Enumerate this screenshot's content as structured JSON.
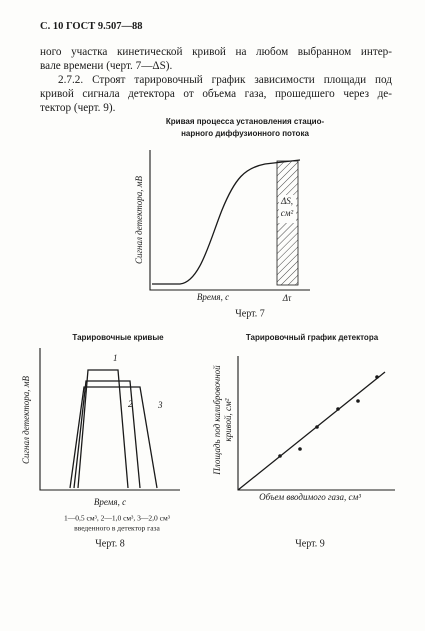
{
  "header": "С. 10 ГОСТ 9.507—88",
  "paragraphs": [
    [
      "ного участка кинетической кривой на любом выбранном интер-",
      "вале времени (черт. 7—ΔS)."
    ],
    [
      "2.7.2. Строят тарировочный график зависимости площади под",
      "кривой сигнала детектора от объема газа, прошедшего через де-",
      "тектор (черт. 9)."
    ]
  ],
  "figures": [
    {
      "title": [
        "Кривая процесса установления стацио-",
        "нарного диффузионного потока"
      ],
      "y_label": "Сигнал детектора, мВ",
      "x_label": "Время, с",
      "interval_label": "Δτ",
      "area_label": [
        "ΔS,",
        "см²"
      ],
      "caption": "Черт. 7"
    },
    {
      "title": [
        "Тарировочные кривые"
      ],
      "y_label": "Сигнал детектора, мВ",
      "x_label": "Время, с",
      "curve_labels": [
        "1",
        "2",
        "3"
      ],
      "legend": [
        "1—0,5 см³, 2—1,0 см³, 3—2,0 см³",
        "введенного в детектор газа"
      ],
      "caption": "Черт. 8"
    },
    {
      "title": [
        "Тарировочный график детектора"
      ],
      "y_label": [
        "Площадь под калибровочной",
        "кривой, см²"
      ],
      "x_label": "Объем вводимого газа, см³",
      "caption": "Черт. 9"
    }
  ]
}
